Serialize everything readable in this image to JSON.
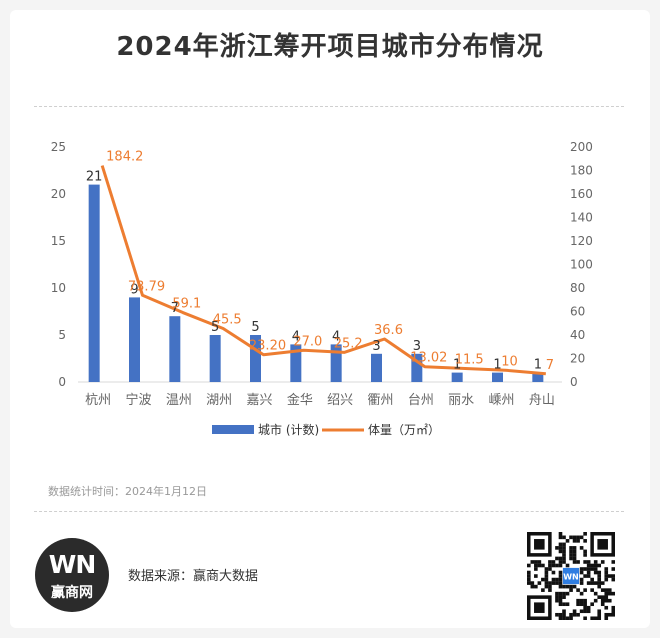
{
  "page": {
    "title": "2024年浙江筹开项目城市分布情况",
    "stat_time": "数据统计时间：2024年1月12日",
    "source": "数据来源：赢商大数据",
    "logo_mark": "WN",
    "logo_name": "赢商网",
    "qr_badge": "WN",
    "colors": {
      "bar": "#4472c4",
      "line": "#ed7d31",
      "text": "#333333",
      "axis": "#666666"
    }
  },
  "chart_data": {
    "type": "bar",
    "categories": [
      "杭州",
      "宁波",
      "温州",
      "湖州",
      "嘉兴",
      "金华",
      "绍兴",
      "衢州",
      "台州",
      "丽水",
      "嵊州",
      "舟山"
    ],
    "series": [
      {
        "name": "城市 (计数)",
        "type": "bar",
        "axis": "left",
        "values": [
          21,
          9,
          7,
          5,
          5,
          4,
          4,
          3,
          3,
          1,
          1,
          1
        ],
        "labels": [
          "21",
          "9",
          "7",
          "5",
          "5",
          "4",
          "4",
          "3",
          "3",
          "1",
          "1",
          "1"
        ]
      },
      {
        "name": "体量（万㎡）",
        "type": "line",
        "axis": "right",
        "values": [
          184.2,
          73.79,
          59.1,
          45.5,
          23.2,
          27.0,
          25.2,
          36.6,
          13.02,
          11.5,
          10,
          7
        ],
        "labels": [
          "184.2",
          "73.79",
          "59.1",
          "45.5",
          "23.20",
          "27.0",
          "25.2",
          "36.6",
          "13.02",
          "11.5",
          "10",
          "7"
        ]
      }
    ],
    "y_left": {
      "lim": [
        0,
        25
      ],
      "ticks": [
        "0",
        "5",
        "10",
        "15",
        "20",
        "25"
      ]
    },
    "y_right": {
      "lim": [
        0,
        200
      ],
      "ticks": [
        "0",
        "20",
        "40",
        "60",
        "80",
        "100",
        "120",
        "140",
        "160",
        "180",
        "200"
      ]
    },
    "legend": [
      "城市 (计数)",
      "体量（万㎡）"
    ],
    "legend_position": "bottom",
    "grid": false
  }
}
